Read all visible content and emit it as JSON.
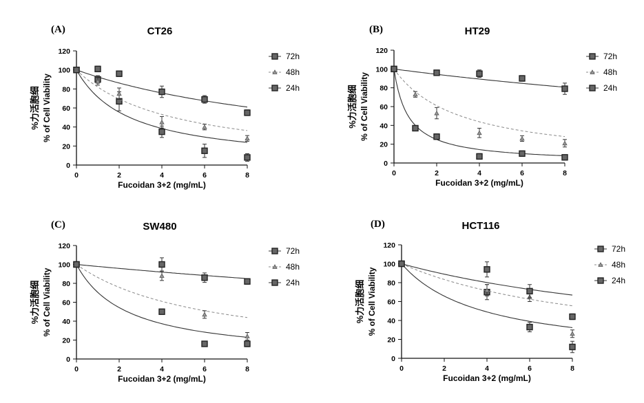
{
  "figure": {
    "xlabel": "Fucoidan 3+2 (mg/mL)",
    "ylabel": "% of Cell Viability",
    "ylabel_cn": "%力活胞细"
  },
  "chart_data": [
    {
      "type": "scatter",
      "panel": "(A)",
      "title": "CT26",
      "xlabel": "Fucoidan 3+2 (mg/mL)",
      "ylabel": "% of Cell Viability",
      "xlim": [
        0,
        8
      ],
      "ylim": [
        0,
        120
      ],
      "xticks": [
        0,
        2,
        4,
        6,
        8
      ],
      "yticks": [
        0,
        20,
        40,
        60,
        80,
        100,
        120
      ],
      "series": [
        {
          "name": "72h",
          "x": [
            0,
            1,
            2,
            4,
            6,
            8
          ],
          "y": [
            100,
            90,
            67,
            35,
            15,
            8
          ],
          "err": [
            2,
            4,
            10,
            6,
            7,
            4
          ],
          "fit": [
            0,
            0.4
          ],
          "marker": "square",
          "line": "solid"
        },
        {
          "name": "48h",
          "x": [
            0,
            1,
            2,
            4,
            6,
            8
          ],
          "y": [
            100,
            88,
            75,
            45,
            40,
            28
          ],
          "err": [
            2,
            4,
            6,
            6,
            3,
            3
          ],
          "fit": [
            0,
            0.22
          ],
          "marker": "triangle",
          "line": "dash"
        },
        {
          "name": "24h",
          "x": [
            0,
            1,
            2,
            4,
            6,
            8
          ],
          "y": [
            100,
            101,
            96,
            77,
            69,
            55
          ],
          "err": [
            2,
            3,
            3,
            6,
            4,
            3
          ],
          "fit": [
            0,
            0.08
          ],
          "marker": "square",
          "line": "solid"
        }
      ]
    },
    {
      "type": "scatter",
      "panel": "(B)",
      "title": "HT29",
      "xlabel": "Fucoidan 3+2 (mg/mL)",
      "ylabel": "% of Cell Viability",
      "xlim": [
        0,
        8
      ],
      "ylim": [
        0,
        120
      ],
      "xticks": [
        0,
        2,
        4,
        6,
        8
      ],
      "yticks": [
        0,
        20,
        40,
        60,
        80,
        100,
        120
      ],
      "series": [
        {
          "name": "72h",
          "x": [
            0,
            1,
            2,
            4,
            6,
            8
          ],
          "y": [
            100,
            37,
            28,
            7,
            10,
            6
          ],
          "err": [
            2,
            2,
            3,
            3,
            2,
            2
          ],
          "fit": [
            0,
            1.5
          ],
          "marker": "square",
          "line": "solid"
        },
        {
          "name": "48h",
          "x": [
            0,
            1,
            2,
            4,
            6,
            8
          ],
          "y": [
            100,
            73,
            53,
            32,
            26,
            21
          ],
          "err": [
            2,
            3,
            6,
            5,
            3,
            4
          ],
          "fit": [
            0,
            0.32
          ],
          "marker": "triangle",
          "line": "dash"
        },
        {
          "name": "24h",
          "x": [
            0,
            2,
            4,
            6,
            8
          ],
          "y": [
            100,
            96,
            95,
            90,
            79
          ],
          "err": [
            2,
            2,
            4,
            3,
            6
          ],
          "fit": [
            0,
            0.03
          ],
          "marker": "square",
          "line": "solid"
        }
      ]
    },
    {
      "type": "scatter",
      "panel": "(C)",
      "title": "SW480",
      "xlabel": "Fucoidan 3+2 (mg/mL)",
      "ylabel": "% of Cell Viability",
      "xlim": [
        0,
        8
      ],
      "ylim": [
        0,
        120
      ],
      "xticks": [
        0,
        2,
        4,
        6,
        8
      ],
      "yticks": [
        0,
        20,
        40,
        60,
        80,
        100,
        120
      ],
      "series": [
        {
          "name": "72h",
          "x": [
            0,
            4,
            6,
            8
          ],
          "y": [
            100,
            50,
            16,
            16
          ],
          "err": [
            2,
            2,
            2,
            3
          ],
          "fit": [
            0,
            0.42
          ],
          "marker": "square",
          "line": "solid"
        },
        {
          "name": "48h",
          "x": [
            0,
            4,
            6,
            8
          ],
          "y": [
            100,
            88,
            47,
            24
          ],
          "err": [
            2,
            5,
            4,
            4
          ],
          "fit": [
            0,
            0.16
          ],
          "marker": "triangle",
          "line": "dash"
        },
        {
          "name": "24h",
          "x": [
            0,
            4,
            6,
            8
          ],
          "y": [
            100,
            100,
            86,
            82
          ],
          "err": [
            2,
            7,
            5,
            3
          ],
          "fit": [
            0,
            0.022
          ],
          "marker": "square",
          "line": "solid"
        }
      ]
    },
    {
      "type": "scatter",
      "panel": "(D)",
      "title": "HCT116",
      "xlabel": "Fucoidan 3+2 (mg/mL)",
      "ylabel": "% of Cell Viability",
      "xlim": [
        0,
        8
      ],
      "ylim": [
        0,
        120
      ],
      "xticks": [
        0,
        2,
        4,
        6,
        8
      ],
      "yticks": [
        0,
        20,
        40,
        60,
        80,
        100,
        120
      ],
      "series": [
        {
          "name": "72h",
          "x": [
            0,
            4,
            6,
            8
          ],
          "y": [
            100,
            70,
            33,
            12
          ],
          "err": [
            2,
            8,
            5,
            6
          ],
          "fit": [
            0,
            0.26
          ],
          "marker": "square",
          "line": "solid"
        },
        {
          "name": "48h",
          "x": [
            0,
            4,
            6,
            8
          ],
          "y": [
            100,
            72,
            65,
            26
          ],
          "err": [
            2,
            6,
            5,
            4
          ],
          "fit": [
            0,
            0.1
          ],
          "marker": "triangle",
          "line": "dash"
        },
        {
          "name": "24h",
          "x": [
            0,
            4,
            6,
            8
          ],
          "y": [
            100,
            94,
            71,
            44
          ],
          "err": [
            2,
            8,
            7,
            3
          ],
          "fit": [
            0,
            0.062
          ],
          "marker": "square",
          "line": "solid"
        }
      ]
    }
  ]
}
